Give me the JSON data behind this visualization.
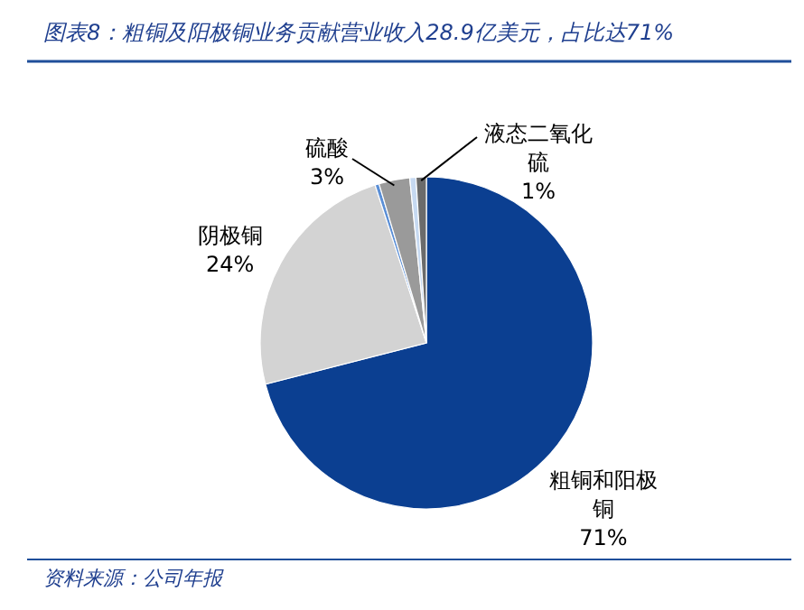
{
  "chart_data": {
    "type": "pie",
    "title": "图表8：粗铜及阳极铜业务贡献营业收入28.9亿美元，占比达71%",
    "categories": [
      "粗铜和阳极铜",
      "阴极铜",
      null,
      "硫酸",
      null,
      "液态二氧化硫"
    ],
    "values": [
      71,
      24,
      0.4,
      3,
      0.6,
      1
    ],
    "colors": [
      "#0b3f91",
      "#d3d3d3",
      "#5b8fd6",
      "#9a9a9a",
      "#c6d9f1",
      "#6b6b6b"
    ],
    "value_labels": [
      "71%",
      "24%",
      null,
      "3%",
      null,
      "1%"
    ],
    "annotations": [
      "资料来源：公司年报"
    ]
  }
}
